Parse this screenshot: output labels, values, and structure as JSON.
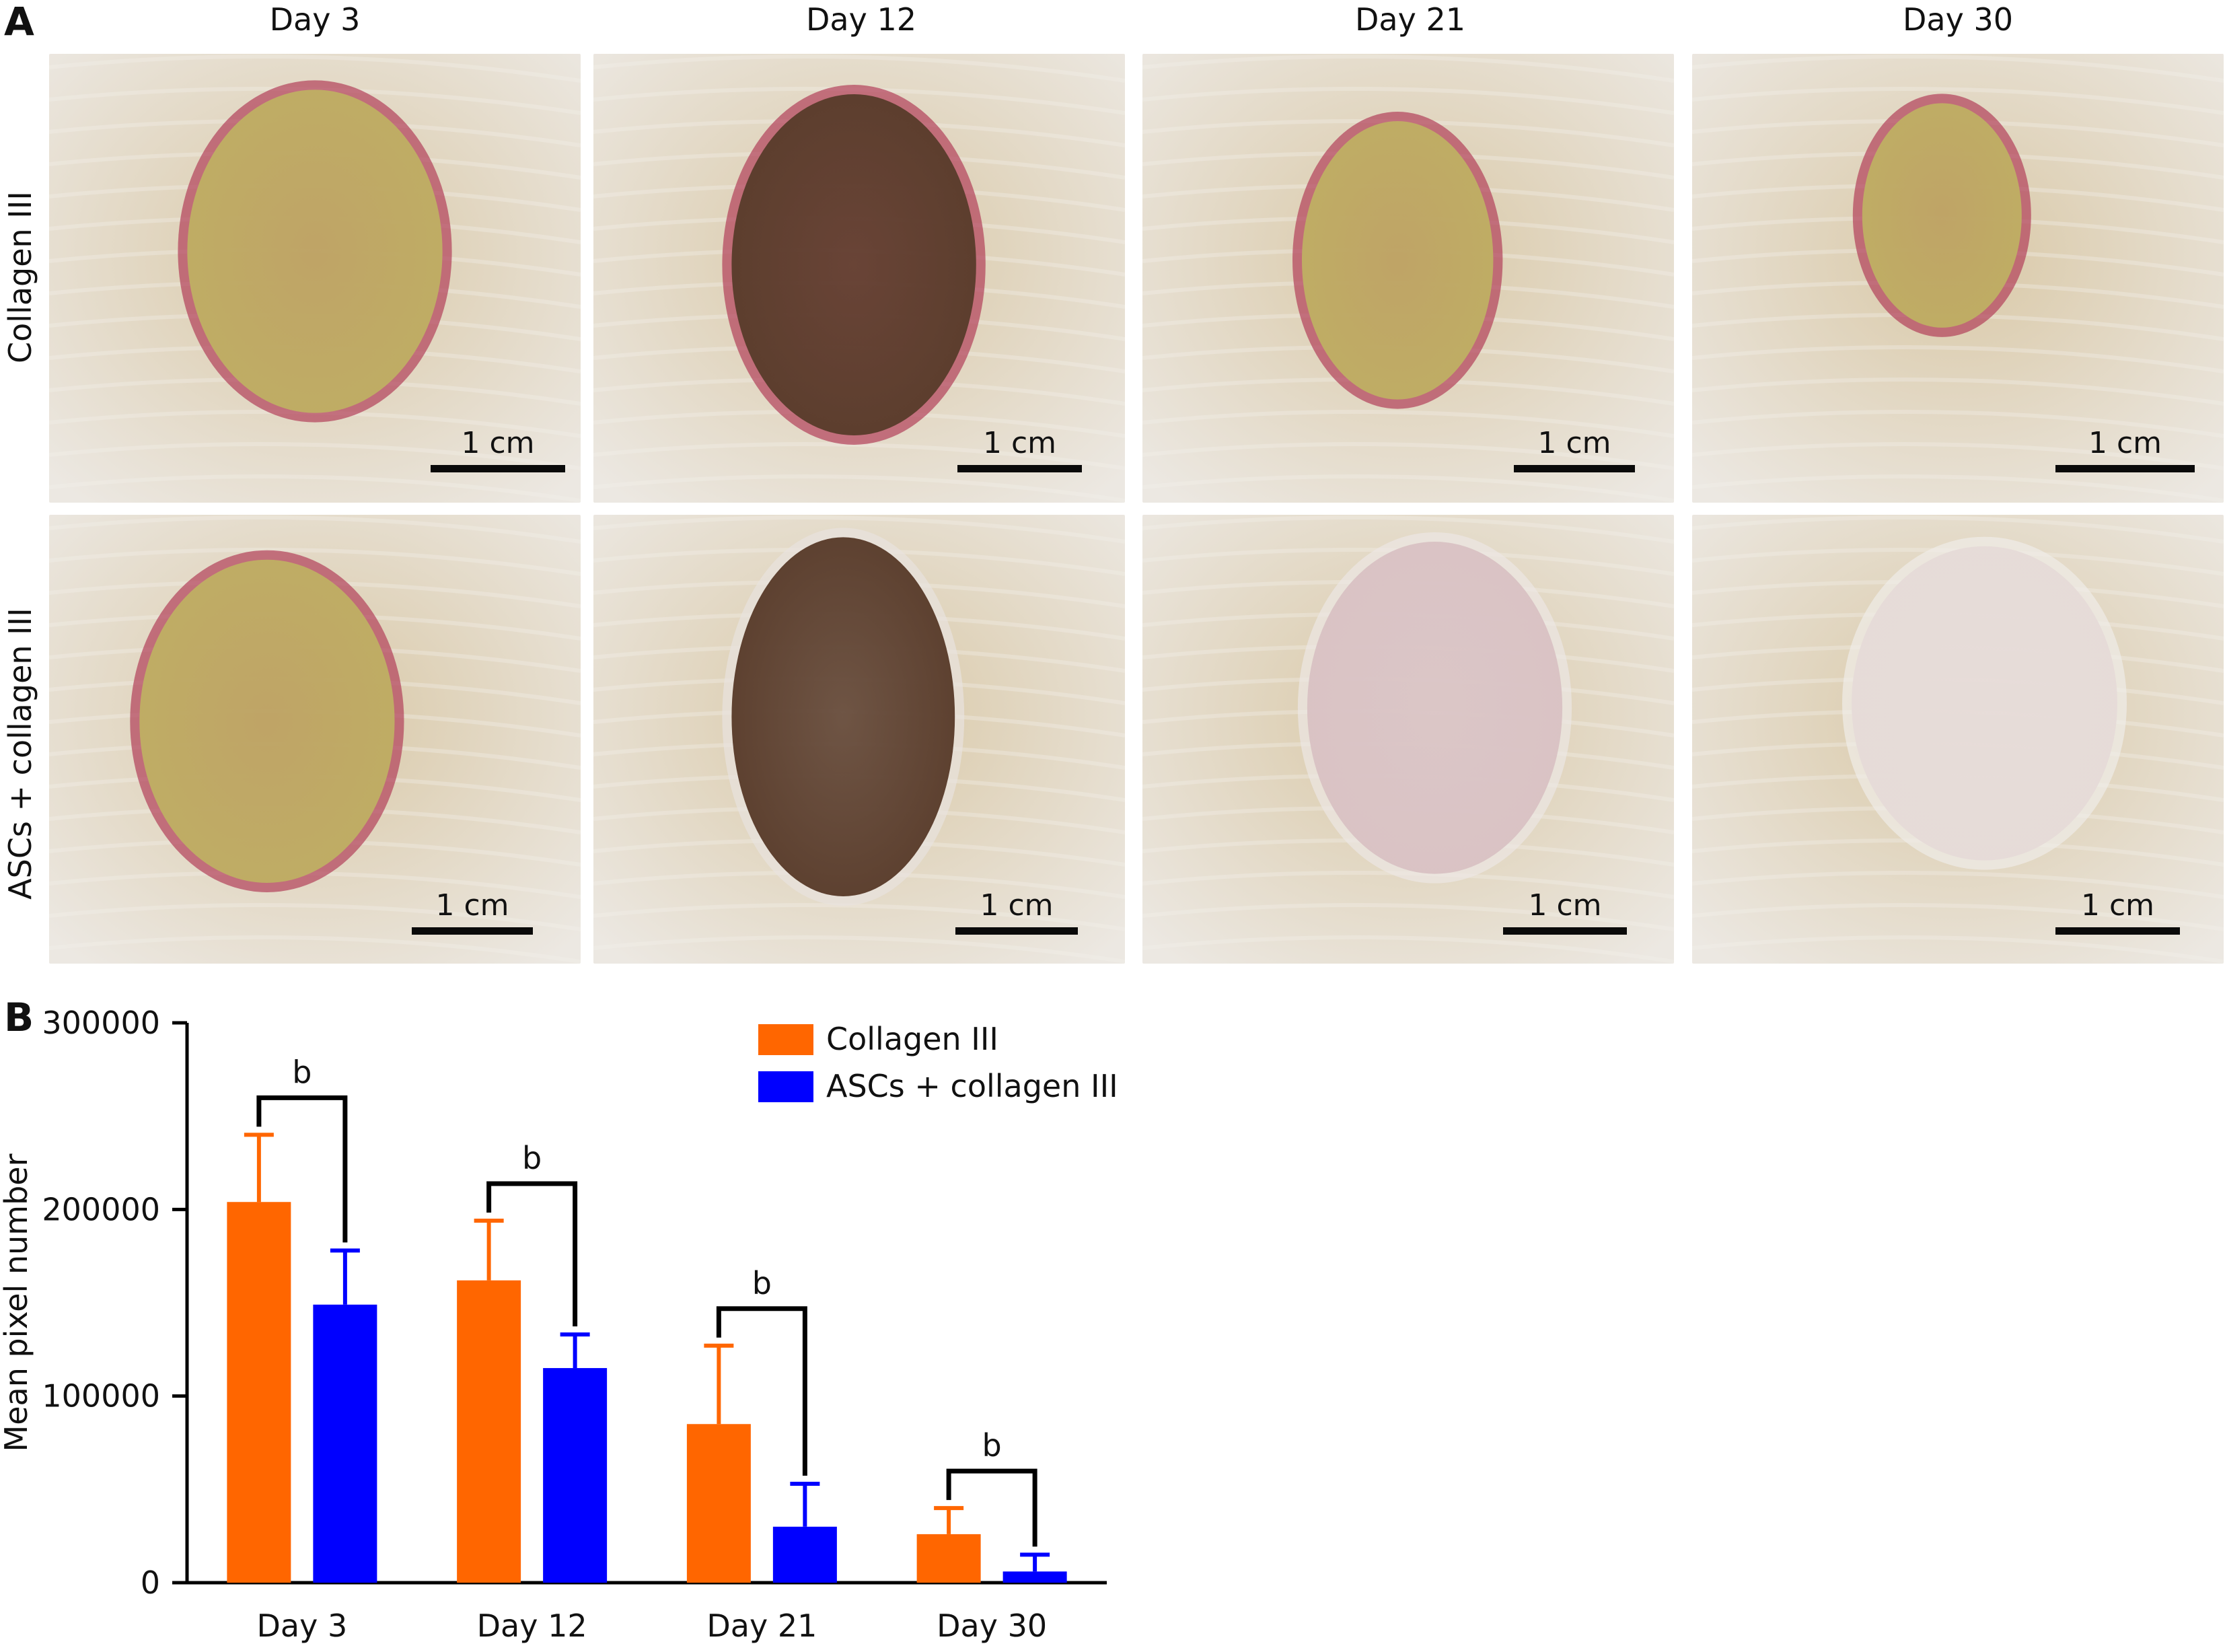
{
  "panel_a": {
    "letter": "A",
    "columns": [
      "Day 3",
      "Day 12",
      "Day 21",
      "Day 30"
    ],
    "rows": [
      "Collagen III",
      "ASCs + collagen III"
    ],
    "scale_bar_label": "1 cm"
  },
  "panel_b": {
    "letter": "B"
  },
  "chart_data": {
    "type": "bar",
    "categories": [
      "Day 3",
      "Day 12",
      "Day 21",
      "Day 30"
    ],
    "ylabel": "Mean pixel number",
    "ylim": [
      0,
      300000
    ],
    "yticks": [
      "0",
      "100000",
      "200000",
      "300000"
    ],
    "legend_position": "top-right",
    "series": [
      {
        "name": "Collagen III",
        "color": "#ff6600",
        "values": [
          204000,
          162000,
          85000,
          26000
        ],
        "error": [
          36000,
          32000,
          42000,
          14000
        ]
      },
      {
        "name": "ASCs + collagen III",
        "color": "#0000ff",
        "values": [
          149000,
          115000,
          30000,
          6000
        ],
        "error": [
          29000,
          18000,
          23000,
          9000
        ]
      }
    ],
    "significance_label": "b"
  },
  "colors": {
    "skin": "#d9c8a6",
    "fur": "#ece8e2",
    "scab_yellow": "#bfae64",
    "scab_dark": "#5a3d2c",
    "wound_red": "#b2405a",
    "glove_blue": "#2f7fe0"
  }
}
